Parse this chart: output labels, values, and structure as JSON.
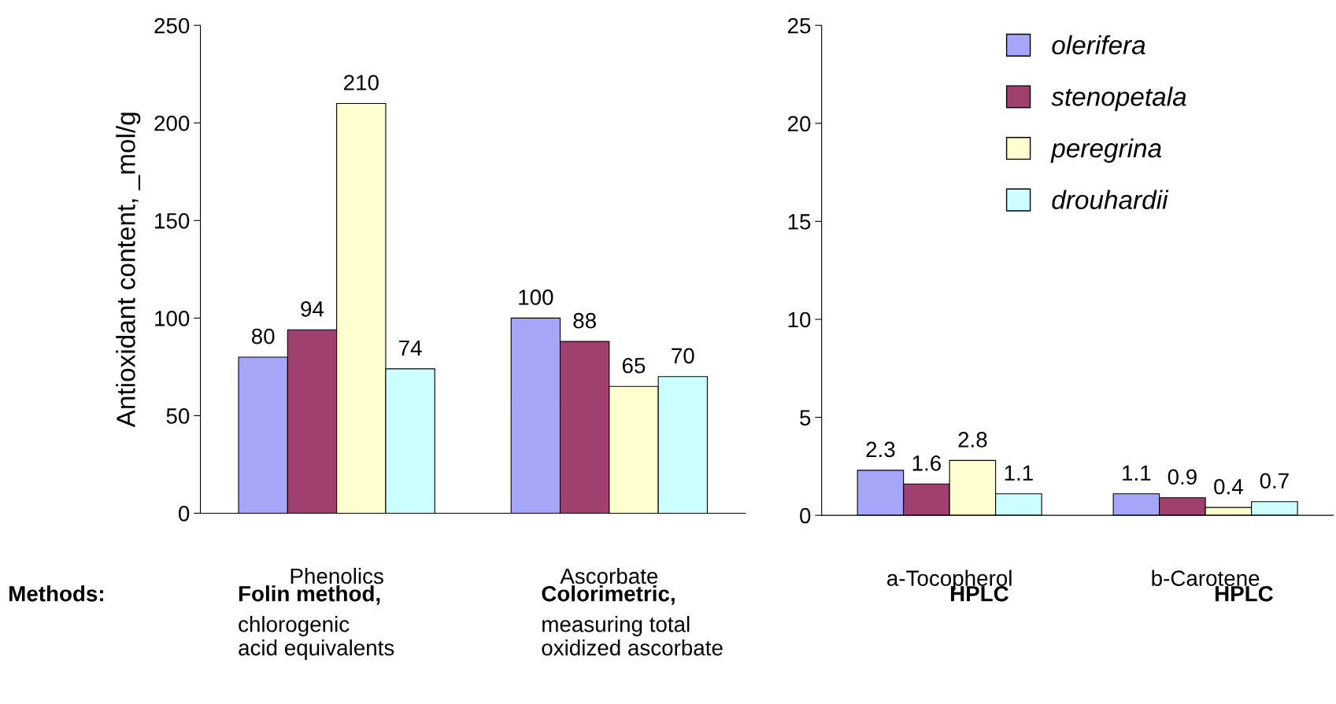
{
  "chart_data": [
    {
      "type": "bar",
      "ylabel": "Antioxidant content, _mol/g",
      "categories": [
        "Phenolics",
        "Ascorbate"
      ],
      "ylim": [
        0,
        250
      ],
      "yticks": [
        0,
        50,
        100,
        150,
        200,
        250
      ],
      "data_labels": true,
      "grid": false,
      "series": [
        {
          "color": "#a6a6f8",
          "values": [
            80,
            100
          ]
        },
        {
          "color": "#a0406e",
          "values": [
            94,
            88
          ]
        },
        {
          "color": "#ffffd0",
          "values": [
            210,
            65
          ]
        },
        {
          "color": "#ccffff",
          "values": [
            74,
            70
          ]
        }
      ],
      "annotations": [
        "Methods:",
        "Folin method,",
        "chlorogenic\nacid equivalents",
        "Colorimetric,",
        "measuring total\noxidized ascorbate"
      ]
    },
    {
      "type": "bar",
      "categories": [
        "a-Tocopherol",
        "b-Carotene"
      ],
      "ylim": [
        0,
        25
      ],
      "yticks": [
        0,
        5,
        10,
        15,
        20,
        25
      ],
      "data_labels": true,
      "grid": false,
      "legend": "top right",
      "series": [
        {
          "name": "olerifera",
          "color": "#a6a6f8",
          "values": [
            2.3,
            1.1
          ]
        },
        {
          "name": "stenopetala",
          "color": "#a0406e",
          "values": [
            1.6,
            0.9
          ]
        },
        {
          "name": "peregrina",
          "color": "#ffffd0",
          "values": [
            2.8,
            0.4
          ]
        },
        {
          "name": "drouhardii",
          "color": "#ccffff",
          "values": [
            1.1,
            0.7
          ]
        }
      ],
      "annotations": [
        "HPLC",
        "HPLC"
      ]
    }
  ]
}
